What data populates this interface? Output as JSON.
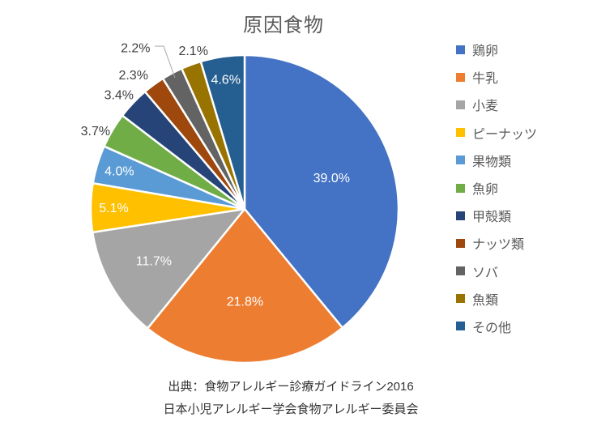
{
  "chart_data": {
    "type": "pie",
    "title": "原因食物",
    "categories": [
      "鶏卵",
      "牛乳",
      "小麦",
      "ピーナッツ",
      "果物類",
      "魚卵",
      "甲殻類",
      "ナッツ類",
      "ソバ",
      "魚類",
      "その他"
    ],
    "values": [
      39.0,
      21.8,
      11.7,
      5.1,
      4.0,
      3.7,
      3.4,
      2.3,
      2.2,
      2.1,
      4.6
    ],
    "data_labels": [
      "39.0%",
      "21.8%",
      "11.7%",
      "5.1%",
      "4.0%",
      "3.7%",
      "3.4%",
      "2.3%",
      "2.2%",
      "2.1%",
      "4.6%"
    ],
    "colors": [
      "#4472C4",
      "#ED7D31",
      "#A5A5A5",
      "#FFC000",
      "#5B9BD5",
      "#70AD47",
      "#264478",
      "#9E480E",
      "#636363",
      "#997300",
      "#255E91"
    ],
    "legend_position": "right",
    "start_angle_deg": 0,
    "direction": "clockwise",
    "title_color": "#595959",
    "label_color_inside": "#FFFFFF",
    "label_color_outside": "#404040",
    "slice_border_color": "#FFFFFF"
  },
  "source": {
    "line1": "出典：食物アレルギー診療ガイドライン2016",
    "line2": "日本小児アレルギー学会食物アレルギー委員会"
  }
}
